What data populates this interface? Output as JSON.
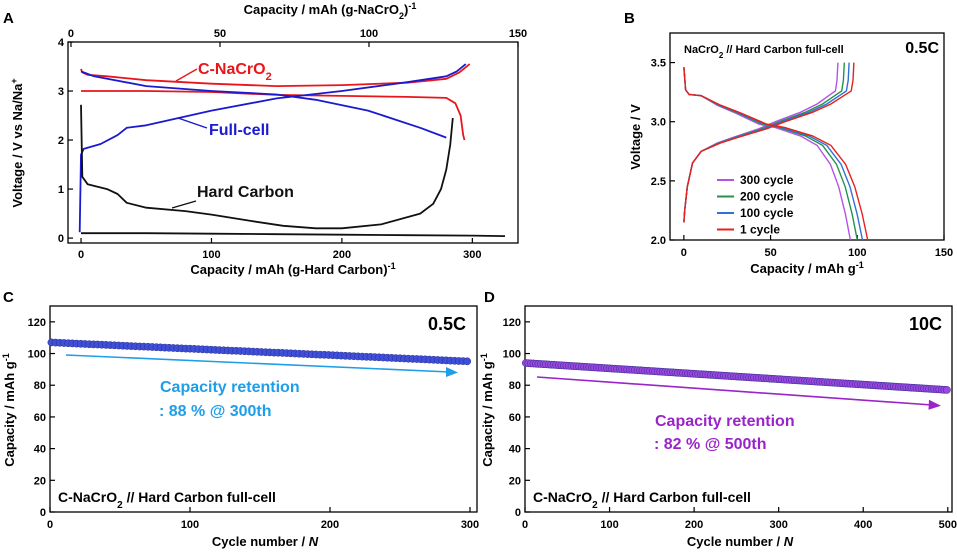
{
  "chart_data": [
    {
      "panel": "A",
      "type": "line",
      "xlabel": "Capacity / mAh (g-Hard Carbon)",
      "xlabel_sup": "-1",
      "x2label": "Capacity / mAh (g-NaCrO",
      "x2label_sub": "2",
      "x2label_end": ")",
      "x2label_sup": "-1",
      "ylabel": "Voltage / V vs Na/Na",
      "ylabel_sup": "+",
      "xlim": [
        -10,
        335
      ],
      "ylim": [
        -0.1,
        4
      ],
      "x2lim": [
        -1,
        150
      ],
      "xticks": [
        "0",
        "100",
        "200",
        "300"
      ],
      "x2ticks": [
        "0",
        "50",
        "100",
        "150"
      ],
      "yticks": [
        "0",
        "1",
        "2",
        "3",
        "4"
      ],
      "series": [
        {
          "name": "C-NaCrO2",
          "color": "#e8161b",
          "label": "C-NaCrO",
          "label_sub": "2",
          "charge": [
            [
              0,
              3.45
            ],
            [
              1,
              3.38
            ],
            [
              5,
              3.33
            ],
            [
              20,
              3.3
            ],
            [
              50,
              3.22
            ],
            [
              100,
              3.15
            ],
            [
              150,
              3.1
            ],
            [
              200,
              3.12
            ],
            [
              250,
              3.17
            ],
            [
              280,
              3.25
            ],
            [
              290,
              3.38
            ],
            [
              298,
              3.55
            ]
          ],
          "discharge": [
            [
              0,
              3.0
            ],
            [
              5,
              3.0
            ],
            [
              20,
              3.0
            ],
            [
              50,
              3.0
            ],
            [
              100,
              2.98
            ],
            [
              150,
              2.92
            ],
            [
              200,
              2.9
            ],
            [
              250,
              2.88
            ],
            [
              280,
              2.86
            ],
            [
              287,
              2.75
            ],
            [
              291,
              2.5
            ],
            [
              293,
              2.1
            ],
            [
              294,
              2.0
            ]
          ]
        },
        {
          "name": "Full-cell",
          "color": "#1a1ad0",
          "label": "Full-cell",
          "charge": [
            [
              -1,
              0.12
            ],
            [
              0,
              1.7
            ],
            [
              2,
              1.82
            ],
            [
              15,
              1.92
            ],
            [
              28,
              2.1
            ],
            [
              35,
              2.25
            ],
            [
              50,
              2.3
            ],
            [
              100,
              2.6
            ],
            [
              150,
              2.85
            ],
            [
              200,
              3.0
            ],
            [
              250,
              3.18
            ],
            [
              280,
              3.3
            ],
            [
              288,
              3.4
            ],
            [
              295,
              3.55
            ]
          ],
          "discharge": [
            [
              0,
              3.4
            ],
            [
              10,
              3.3
            ],
            [
              50,
              3.1
            ],
            [
              100,
              3.0
            ],
            [
              150,
              2.93
            ],
            [
              180,
              2.82
            ],
            [
              220,
              2.6
            ],
            [
              260,
              2.25
            ],
            [
              280,
              2.05
            ]
          ]
        },
        {
          "name": "Hard Carbon",
          "color": "#111111",
          "label": "Hard Carbon",
          "discharge": [
            [
              0,
              2.72
            ],
            [
              1,
              1.25
            ],
            [
              5,
              1.1
            ],
            [
              20,
              1.0
            ],
            [
              28,
              0.9
            ],
            [
              35,
              0.72
            ],
            [
              50,
              0.62
            ],
            [
              80,
              0.55
            ],
            [
              100,
              0.48
            ],
            [
              130,
              0.35
            ],
            [
              155,
              0.25
            ],
            [
              180,
              0.2
            ],
            [
              200,
              0.2
            ],
            [
              230,
              0.28
            ],
            [
              260,
              0.5
            ],
            [
              270,
              0.7
            ],
            [
              276,
              1.0
            ],
            [
              280,
              1.4
            ],
            [
              283,
              1.9
            ],
            [
              285,
              2.45
            ]
          ],
          "charge": [
            [
              0,
              0.1
            ],
            [
              50,
              0.1
            ],
            [
              100,
              0.09
            ],
            [
              150,
              0.08
            ],
            [
              200,
              0.07
            ],
            [
              250,
              0.06
            ],
            [
              300,
              0.05
            ],
            [
              325,
              0.04
            ]
          ]
        }
      ]
    },
    {
      "panel": "B",
      "type": "line",
      "title": "NaCrO",
      "title_sub": "2",
      "title_end": " // Hard Carbon full-cell",
      "rate": "0.5C",
      "xlabel": "Capacity / mAh g",
      "xlabel_sup": "-1",
      "ylabel": "Voltage  /  V",
      "xlim": [
        -8,
        150
      ],
      "ylim": [
        2.0,
        3.75
      ],
      "xticks": [
        "0",
        "50",
        "100",
        "150"
      ],
      "yticks": [
        "2.0",
        "2.5",
        "3.0",
        "3.5"
      ],
      "series": [
        {
          "name": "300 cycle",
          "color": "#b552e8",
          "cap": 96
        },
        {
          "name": "200 cycle",
          "color": "#24924a",
          "cap": 100
        },
        {
          "name": "100 cycle",
          "color": "#2f72d6",
          "cap": 103
        },
        {
          "name": "1 cycle",
          "color": "#e8201c",
          "cap": 106
        }
      ]
    },
    {
      "panel": "C",
      "type": "scatter",
      "rate": "0.5C",
      "ylabel": "Capacity  /  mAh g",
      "ylabel_sup": "-1",
      "xlabel": "Cycle number  /  ",
      "xlabel_italic": "N",
      "xlim": [
        0,
        305
      ],
      "ylim": [
        0,
        130
      ],
      "xticks": [
        "0",
        "100",
        "200",
        "300"
      ],
      "yticks": [
        "0",
        "20",
        "40",
        "60",
        "80",
        "100",
        "120"
      ],
      "series": [
        {
          "name": "capacity",
          "color": "#3e4fd9",
          "x_start": 1,
          "x_end": 300,
          "y_start": 107,
          "y_end": 95
        }
      ],
      "annotation_line1": "Capacity retention",
      "annotation_line2": ": 88 % @ 300th",
      "annotation_color": "#1e9ee8",
      "cell_label": "C-NaCrO",
      "cell_label_sub": "2",
      "cell_label_end": " // Hard Carbon full-cell"
    },
    {
      "panel": "D",
      "type": "scatter",
      "rate": "10C",
      "ylabel": "Capacity  /  mAh g",
      "ylabel_sup": "-1",
      "xlabel": "Cycle number  /  ",
      "xlabel_italic": "N",
      "xlim": [
        0,
        505
      ],
      "ylim": [
        0,
        130
      ],
      "xticks": [
        "0",
        "100",
        "200",
        "300",
        "400",
        "500"
      ],
      "yticks": [
        "0",
        "20",
        "40",
        "60",
        "80",
        "100",
        "120"
      ],
      "series": [
        {
          "name": "capacity",
          "color": "#9b47e0",
          "x_start": 1,
          "x_end": 500,
          "y_start": 94,
          "y_end": 77
        }
      ],
      "annotation_line1": "Capacity retention",
      "annotation_line2": ": 82 % @ 500th",
      "annotation_color": "#9a24c8",
      "cell_label": "C-NaCrO",
      "cell_label_sub": "2",
      "cell_label_end": " // Hard Carbon full-cell"
    }
  ]
}
